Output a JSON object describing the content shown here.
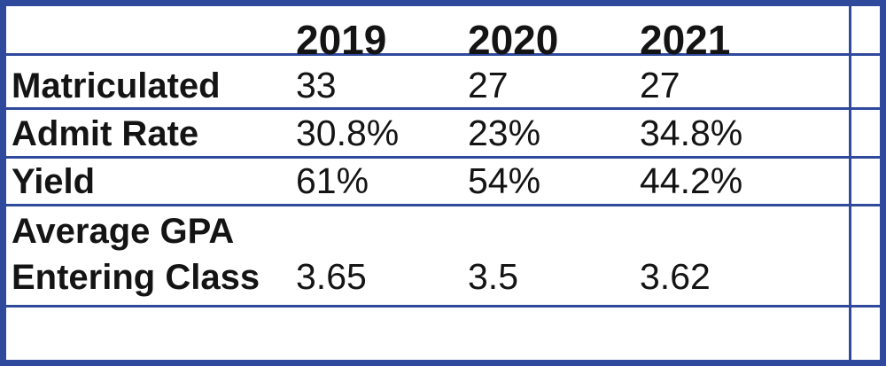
{
  "table": {
    "columns": [
      "2019",
      "2020",
      "2021"
    ],
    "rows": [
      {
        "label": "Matriculated",
        "values": [
          "33",
          "27",
          "27"
        ]
      },
      {
        "label": "Admit Rate",
        "values": [
          "30.8%",
          "23%",
          "34.8%"
        ]
      },
      {
        "label": "Yield",
        "values": [
          "61%",
          "54%",
          "44.2%"
        ]
      },
      {
        "label_line1": "Average GPA",
        "label_line2": "Entering Class",
        "values": [
          "3.65",
          "3.5",
          "3.62"
        ]
      }
    ]
  },
  "colors": {
    "border": "#2f4a9c",
    "text": "#141414",
    "background": "#ffffff"
  }
}
